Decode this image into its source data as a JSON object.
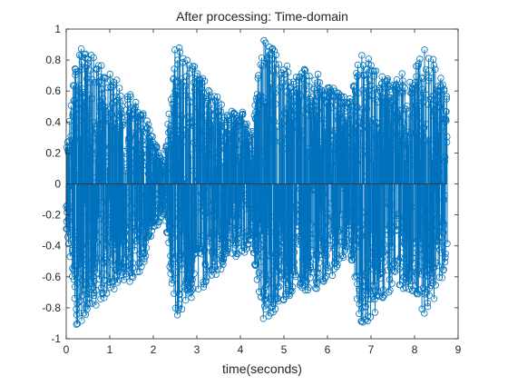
{
  "chart_data": {
    "type": "stem",
    "title": "After processing: Time-domain",
    "xlabel": "time(seconds)",
    "ylabel": "",
    "xlim": [
      0,
      9
    ],
    "ylim": [
      -1,
      1
    ],
    "xticks": [
      0,
      1,
      2,
      3,
      4,
      5,
      6,
      7,
      8,
      9
    ],
    "xtick_labels": [
      "0",
      "1",
      "2",
      "3",
      "4",
      "5",
      "6",
      "7",
      "8",
      "9"
    ],
    "yticks": [
      -1,
      -0.8,
      -0.6,
      -0.4,
      -0.2,
      0,
      0.2,
      0.4,
      0.6,
      0.8,
      1
    ],
    "ytick_labels": [
      "-1",
      "-0.8",
      "-0.6",
      "-0.4",
      "-0.2",
      "0",
      "0.2",
      "0.4",
      "0.6",
      "0.8",
      "1"
    ],
    "grid": false,
    "color": "#0072BD",
    "marker": "circle",
    "signal_end_time": 8.75,
    "envelope": [
      {
        "t": 0.0,
        "max": 0.22,
        "min": -0.28
      },
      {
        "t": 0.25,
        "max": 0.9,
        "min": -0.95
      },
      {
        "t": 0.5,
        "max": 0.85,
        "min": -0.82
      },
      {
        "t": 0.75,
        "max": 0.8,
        "min": -0.78
      },
      {
        "t": 1.0,
        "max": 0.72,
        "min": -0.72
      },
      {
        "t": 1.25,
        "max": 0.65,
        "min": -0.62
      },
      {
        "t": 1.5,
        "max": 0.6,
        "min": -0.66
      },
      {
        "t": 1.75,
        "max": 0.5,
        "min": -0.55
      },
      {
        "t": 2.0,
        "max": 0.3,
        "min": -0.32
      },
      {
        "t": 2.25,
        "max": 0.15,
        "min": -0.2
      },
      {
        "t": 2.5,
        "max": 0.9,
        "min": -0.87
      },
      {
        "t": 2.75,
        "max": 0.85,
        "min": -0.8
      },
      {
        "t": 3.0,
        "max": 0.78,
        "min": -0.75
      },
      {
        "t": 3.25,
        "max": 0.62,
        "min": -0.62
      },
      {
        "t": 3.5,
        "max": 0.56,
        "min": -0.6
      },
      {
        "t": 3.75,
        "max": 0.45,
        "min": -0.45
      },
      {
        "t": 4.0,
        "max": 0.55,
        "min": -0.5
      },
      {
        "t": 4.25,
        "max": 0.3,
        "min": -0.35
      },
      {
        "t": 4.5,
        "max": 0.95,
        "min": -0.9
      },
      {
        "t": 4.75,
        "max": 0.88,
        "min": -0.83
      },
      {
        "t": 5.0,
        "max": 0.8,
        "min": -0.79
      },
      {
        "t": 5.25,
        "max": 0.7,
        "min": -0.68
      },
      {
        "t": 5.5,
        "max": 0.75,
        "min": -0.7
      },
      {
        "t": 5.75,
        "max": 0.72,
        "min": -0.68
      },
      {
        "t": 6.0,
        "max": 0.65,
        "min": -0.62
      },
      {
        "t": 6.25,
        "max": 0.6,
        "min": -0.56
      },
      {
        "t": 6.5,
        "max": 0.55,
        "min": -0.4
      },
      {
        "t": 6.75,
        "max": 0.85,
        "min": -0.9
      },
      {
        "t": 7.0,
        "max": 0.8,
        "min": -0.88
      },
      {
        "t": 7.25,
        "max": 0.7,
        "min": -0.75
      },
      {
        "t": 7.5,
        "max": 0.68,
        "min": -0.7
      },
      {
        "t": 7.75,
        "max": 0.72,
        "min": -0.68
      },
      {
        "t": 8.0,
        "max": 0.75,
        "min": -0.72
      },
      {
        "t": 8.25,
        "max": 0.9,
        "min": -0.85
      },
      {
        "t": 8.5,
        "max": 0.78,
        "min": -0.72
      },
      {
        "t": 8.75,
        "max": 0.6,
        "min": -0.6
      }
    ]
  }
}
